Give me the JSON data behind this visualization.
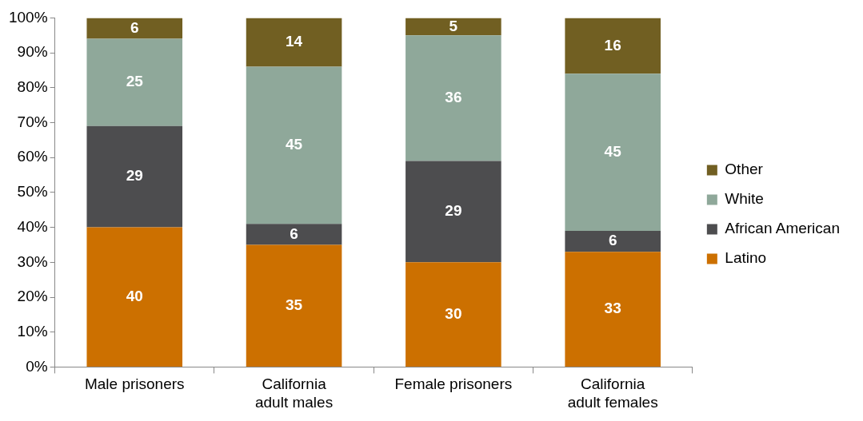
{
  "chart_data": {
    "type": "bar",
    "stacked": true,
    "categories": [
      "Male prisoners",
      "California\nadult males",
      "Female prisoners",
      "California\nadult females"
    ],
    "series": [
      {
        "name": "Latino",
        "color": "#cc7000",
        "values": [
          40,
          35,
          30,
          33
        ]
      },
      {
        "name": "African American",
        "color": "#4d4d4f",
        "values": [
          29,
          6,
          29,
          6
        ]
      },
      {
        "name": "White",
        "color": "#8fa89a",
        "values": [
          25,
          45,
          36,
          45
        ]
      },
      {
        "name": "Other",
        "color": "#715f22",
        "values": [
          6,
          14,
          5,
          16
        ]
      }
    ],
    "ylim": [
      0,
      100
    ],
    "yticks": [
      {
        "value": 0,
        "label": "0%"
      },
      {
        "value": 10,
        "label": "10%"
      },
      {
        "value": 20,
        "label": "20%"
      },
      {
        "value": 30,
        "label": "30%"
      },
      {
        "value": 40,
        "label": "40%"
      },
      {
        "value": 50,
        "label": "50%"
      },
      {
        "value": 60,
        "label": "60%"
      },
      {
        "value": 70,
        "label": "70%"
      },
      {
        "value": 80,
        "label": "80%"
      },
      {
        "value": 90,
        "label": "90%"
      },
      {
        "value": 100,
        "label": "100%"
      }
    ],
    "grid": false,
    "legend": "right",
    "data_labels": true
  }
}
